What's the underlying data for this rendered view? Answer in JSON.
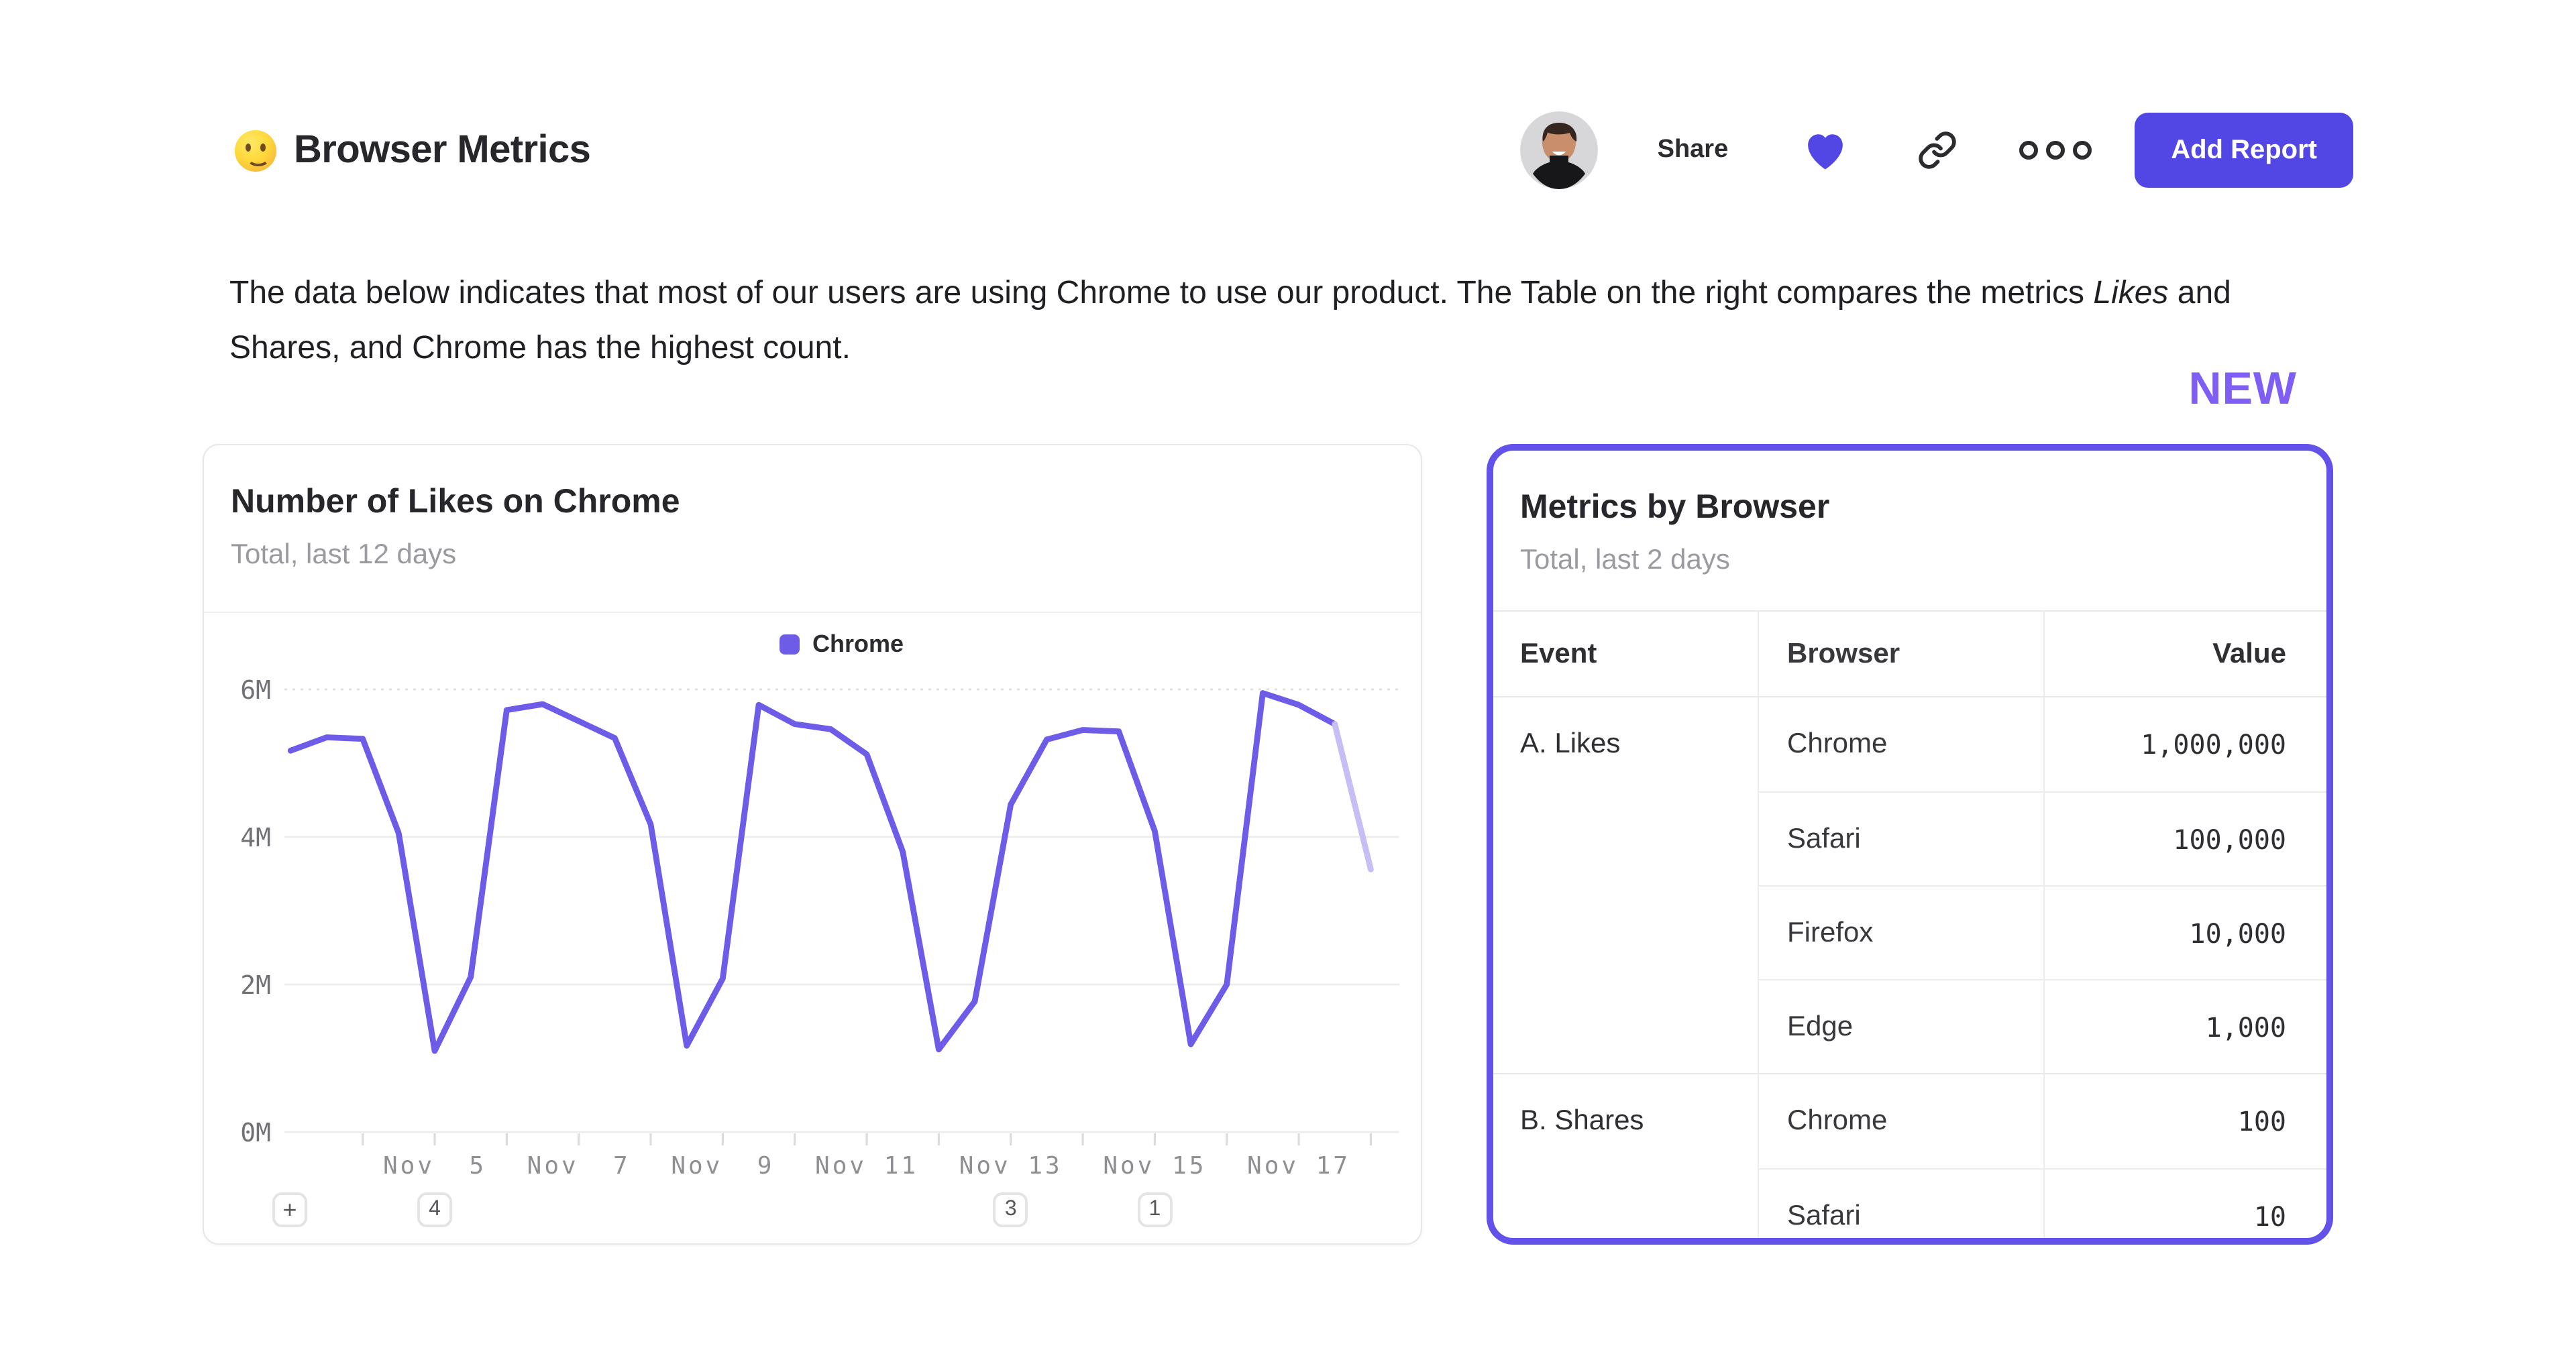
{
  "header": {
    "emoji": "slightly-smiling-face",
    "title": "Browser Metrics",
    "share_label": "Share",
    "add_report_label": "Add Report"
  },
  "description": {
    "before_italic": "The data below indicates that most of our users are using Chrome to use our product. The Table on the right compares the metrics ",
    "italic": "Likes",
    "after_italic": " and Shares, and Chrome has the highest count."
  },
  "new_badge": "NEW",
  "colors": {
    "accent_purple": "#5247e5",
    "line_purple": "#6d5ce8",
    "faded_line_purple": "#c6bef4",
    "table_border_purple": "#6352e9",
    "new_badge_purple": "#7e5ef5",
    "gridline": "#ececee",
    "axis_label_gray": "#8e8e93"
  },
  "chart_data": {
    "type": "line",
    "title": "Number of Likes on Chrome",
    "subtitle": "Total, last 12 days",
    "legend": [
      {
        "name": "Chrome",
        "color": "#6d5ce8"
      }
    ],
    "x_unit": "day of November",
    "x_tick_days": [
      4,
      5,
      6,
      7,
      8,
      9,
      10,
      11,
      12,
      13,
      14,
      15,
      16,
      17,
      18
    ],
    "x_label_days": [
      5,
      7,
      9,
      11,
      13,
      15,
      17
    ],
    "x_label_prefix": "Nov",
    "ylim": [
      0,
      6.3
    ],
    "y_ticks": [
      {
        "v": 0,
        "label": "0M"
      },
      {
        "v": 2,
        "label": "2M"
      },
      {
        "v": 4,
        "label": "4M"
      },
      {
        "v": 6,
        "label": "6M"
      }
    ],
    "series": [
      {
        "name": "Chrome",
        "units": "millions of likes",
        "faded_tail_segments": 1,
        "points": [
          [
            3.0,
            5.17
          ],
          [
            3.5,
            5.35
          ],
          [
            4.0,
            5.33
          ],
          [
            4.5,
            4.05
          ],
          [
            5.0,
            1.1
          ],
          [
            5.5,
            2.1
          ],
          [
            6.0,
            5.72
          ],
          [
            6.5,
            5.8
          ],
          [
            7.0,
            5.57
          ],
          [
            7.5,
            5.34
          ],
          [
            8.0,
            4.17
          ],
          [
            8.5,
            1.17
          ],
          [
            9.0,
            2.08
          ],
          [
            9.5,
            5.79
          ],
          [
            10.0,
            5.53
          ],
          [
            10.5,
            5.46
          ],
          [
            11.0,
            5.12
          ],
          [
            11.5,
            3.8
          ],
          [
            12.0,
            1.12
          ],
          [
            12.5,
            1.77
          ],
          [
            13.0,
            4.44
          ],
          [
            13.5,
            5.32
          ],
          [
            14.0,
            5.45
          ],
          [
            14.5,
            5.43
          ],
          [
            15.0,
            4.08
          ],
          [
            15.5,
            1.19
          ],
          [
            16.0,
            2.0
          ],
          [
            16.5,
            5.95
          ],
          [
            17.0,
            5.79
          ],
          [
            17.5,
            5.53
          ],
          [
            18.0,
            3.56
          ]
        ]
      }
    ],
    "annotations": [
      {
        "label": "+",
        "type": "add-annotation",
        "day": null
      },
      {
        "label": "4",
        "type": "annotation-count",
        "day": 5
      },
      {
        "label": "3",
        "type": "annotation-count",
        "day": 13
      },
      {
        "label": "1",
        "type": "annotation-count",
        "day": 15
      }
    ]
  },
  "table": {
    "title": "Metrics by Browser",
    "subtitle": "Total, last 2 days",
    "columns": [
      "Event",
      "Browser",
      "Value"
    ],
    "groups": [
      {
        "event": "A. Likes",
        "rows": [
          {
            "browser": "Chrome",
            "value": "1,000,000"
          },
          {
            "browser": "Safari",
            "value": "100,000"
          },
          {
            "browser": "Firefox",
            "value": "10,000"
          },
          {
            "browser": "Edge",
            "value": "1,000"
          }
        ]
      },
      {
        "event": "B. Shares",
        "rows": [
          {
            "browser": "Chrome",
            "value": "100"
          },
          {
            "browser": "Safari",
            "value": "10"
          }
        ]
      }
    ]
  }
}
